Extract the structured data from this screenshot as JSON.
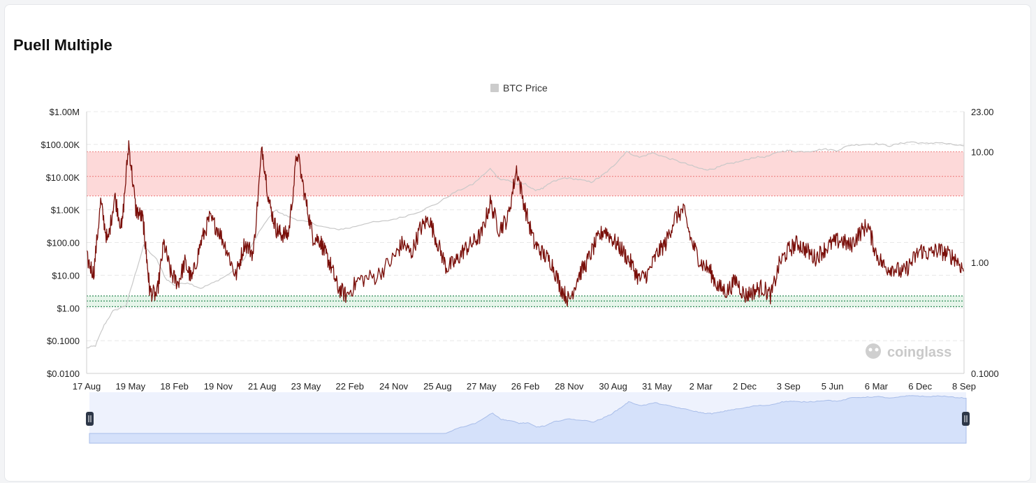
{
  "page": {
    "title": "Puell Multiple"
  },
  "chart_data": {
    "type": "line",
    "legend": [
      {
        "name": "BTC Price",
        "color": "#cccccc"
      }
    ],
    "watermark": "coinglass",
    "x_labels": [
      "17 Aug",
      "19 May",
      "18 Feb",
      "19 Nov",
      "21 Aug",
      "23 May",
      "22 Feb",
      "24 Nov",
      "25 Aug",
      "27 May",
      "26 Feb",
      "28 Nov",
      "30 Aug",
      "31 May",
      "2 Mar",
      "2 Dec",
      "3 Sep",
      "5 Jun",
      "6 Mar",
      "6 Dec",
      "8 Sep"
    ],
    "y_left": {
      "labels": [
        "$1.00M",
        "$100.00K",
        "$10.00K",
        "$1.00K",
        "$100.00",
        "$10.00",
        "$1.00",
        "$0.1000",
        "$0.0100"
      ],
      "scale": "log",
      "range": [
        0.01,
        1000000
      ]
    },
    "y_right": {
      "labels": [
        "23.00",
        "10.00",
        "1.00",
        "0.1000"
      ],
      "scale": "log",
      "range": [
        0.1,
        23
      ]
    },
    "bands": [
      {
        "name": "high",
        "from": 4,
        "to": 10,
        "color": "#fdd9d9"
      },
      {
        "name": "low",
        "from": 0.4,
        "to": 0.5,
        "color": "#e6f5ea"
      }
    ],
    "band_lines": [
      {
        "value": 10,
        "color": "#f08a8a"
      },
      {
        "value": 6,
        "color": "#f08a8a"
      },
      {
        "value": 4,
        "color": "#f08a8a"
      },
      {
        "value": 0.5,
        "color": "#2e8b57"
      },
      {
        "value": 0.45,
        "color": "#2e8b57"
      },
      {
        "value": 0.4,
        "color": "#2e8b57"
      }
    ],
    "series": [
      {
        "name": "BTC Price",
        "axis": "left",
        "color": "#c8c8c8",
        "x": [
          0,
          0.01,
          0.02,
          0.03,
          0.045,
          0.055,
          0.065,
          0.08,
          0.09,
          0.1,
          0.115,
          0.13,
          0.145,
          0.16,
          0.175,
          0.19,
          0.2,
          0.215,
          0.225,
          0.24,
          0.255,
          0.27,
          0.285,
          0.3,
          0.32,
          0.34,
          0.36,
          0.38,
          0.4,
          0.42,
          0.44,
          0.46,
          0.47,
          0.48,
          0.49,
          0.5,
          0.51,
          0.52,
          0.53,
          0.545,
          0.56,
          0.575,
          0.585,
          0.595,
          0.605,
          0.615,
          0.63,
          0.645,
          0.66,
          0.675,
          0.69,
          0.7,
          0.71,
          0.72,
          0.73,
          0.745,
          0.76,
          0.775,
          0.79,
          0.8,
          0.81,
          0.825,
          0.84,
          0.855,
          0.87,
          0.885,
          0.9,
          0.915,
          0.93,
          0.94,
          0.955,
          0.97,
          0.985,
          1.0
        ],
        "y": [
          0.06,
          0.07,
          0.3,
          0.8,
          1.2,
          10,
          80,
          30,
          8,
          5,
          6,
          4,
          6,
          10,
          20,
          100,
          300,
          1000,
          700,
          500,
          400,
          300,
          250,
          280,
          400,
          450,
          600,
          900,
          1600,
          3500,
          6000,
          18000,
          9000,
          8000,
          6000,
          6200,
          4000,
          4500,
          7000,
          9500,
          8500,
          7000,
          10000,
          16000,
          30000,
          60000,
          40000,
          55000,
          40000,
          30000,
          22000,
          18000,
          17000,
          20000,
          25000,
          30000,
          40000,
          42000,
          60000,
          65000,
          60000,
          62000,
          72000,
          65000,
          95000,
          100000,
          105000,
          90000,
          110000,
          120000,
          105000,
          115000,
          100000,
          90000
        ]
      },
      {
        "name": "Puell Multiple",
        "axis": "right",
        "color": "#7a0f0a",
        "x": [
          0,
          0.008,
          0.016,
          0.024,
          0.032,
          0.04,
          0.048,
          0.056,
          0.064,
          0.068,
          0.072,
          0.08,
          0.088,
          0.096,
          0.104,
          0.112,
          0.12,
          0.13,
          0.14,
          0.15,
          0.16,
          0.17,
          0.18,
          0.19,
          0.2,
          0.208,
          0.216,
          0.222,
          0.23,
          0.24,
          0.25,
          0.258,
          0.266,
          0.272,
          0.278,
          0.286,
          0.296,
          0.31,
          0.33,
          0.35,
          0.36,
          0.37,
          0.38,
          0.39,
          0.4,
          0.41,
          0.42,
          0.43,
          0.44,
          0.45,
          0.46,
          0.47,
          0.48,
          0.49,
          0.5,
          0.51,
          0.52,
          0.53,
          0.54,
          0.55,
          0.56,
          0.57,
          0.58,
          0.59,
          0.6,
          0.61,
          0.62,
          0.63,
          0.64,
          0.65,
          0.66,
          0.67,
          0.68,
          0.69,
          0.7,
          0.71,
          0.72,
          0.73,
          0.74,
          0.75,
          0.76,
          0.77,
          0.78,
          0.79,
          0.8,
          0.81,
          0.82,
          0.83,
          0.84,
          0.85,
          0.86,
          0.87,
          0.88,
          0.89,
          0.9,
          0.91,
          0.92,
          0.93,
          0.94,
          0.95,
          0.96,
          0.97,
          0.98,
          0.99,
          1.0
        ],
        "y": [
          1.1,
          0.8,
          3.5,
          1.5,
          4.0,
          2.0,
          12,
          3.0,
          2.5,
          1.2,
          0.55,
          0.5,
          1.5,
          0.8,
          0.65,
          1.0,
          0.7,
          1.5,
          2.5,
          2.0,
          1.3,
          0.75,
          1.5,
          1.2,
          11,
          3.5,
          2.0,
          1.8,
          1.8,
          10,
          3.5,
          1.7,
          1.6,
          1.2,
          0.95,
          0.6,
          0.5,
          0.7,
          0.75,
          1.1,
          1.5,
          1.2,
          2.0,
          2.5,
          1.5,
          0.9,
          1.0,
          1.3,
          1.5,
          1.8,
          3.5,
          2.0,
          2.5,
          7.0,
          3.0,
          1.5,
          1.2,
          1.0,
          0.6,
          0.45,
          0.75,
          1.0,
          1.5,
          2.0,
          1.6,
          1.3,
          1.0,
          0.7,
          0.8,
          1.2,
          1.5,
          2.5,
          3.0,
          1.5,
          1.0,
          0.85,
          0.6,
          0.55,
          0.7,
          0.5,
          0.55,
          0.6,
          0.5,
          1.0,
          1.3,
          1.5,
          1.3,
          1.1,
          1.3,
          1.5,
          1.6,
          1.4,
          1.8,
          2.2,
          1.2,
          0.9,
          0.9,
          0.8,
          1.0,
          1.3,
          1.2,
          1.3,
          1.2,
          1.1,
          0.85
        ]
      }
    ],
    "navigator": {
      "x": [
        0,
        0.1,
        0.2,
        0.3,
        0.4,
        0.46,
        0.48,
        0.5,
        0.55,
        0.6,
        0.66,
        0.69,
        0.72,
        0.76,
        0.8,
        0.85,
        0.9,
        0.94,
        0.97,
        1.0
      ]
    }
  }
}
